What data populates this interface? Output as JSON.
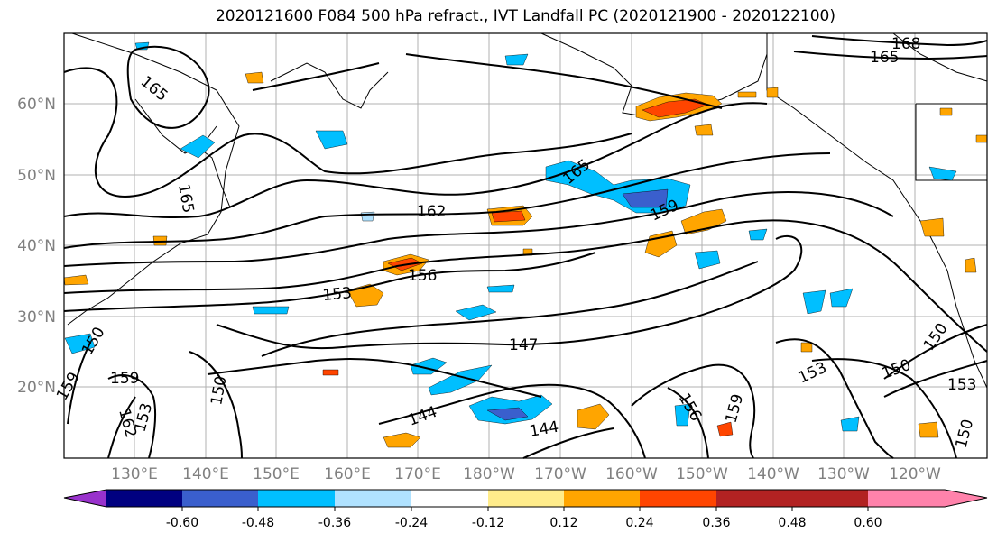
{
  "title": "2020121600 F084 500 hPa refract., IVT Landfall PC (2020121900 - 2020122100)",
  "lat_labels": [
    "60°N",
    "50°N",
    "40°N",
    "30°N",
    "20°N"
  ],
  "lon_labels": [
    "130°E",
    "140°E",
    "150°E",
    "160°E",
    "170°E",
    "180°W",
    "170°W",
    "160°W",
    "150°W",
    "140°W",
    "130°W",
    "120°W"
  ],
  "contour_labels": [
    "165",
    "168",
    "165",
    "165",
    "165",
    "162",
    "159",
    "156",
    "153",
    "147",
    "150",
    "159",
    "162",
    "153",
    "150",
    "144",
    "144",
    "156",
    "159",
    "153",
    "150",
    "150",
    "153",
    "150",
    "159"
  ],
  "colorbar": {
    "ticks": [
      "-0.60",
      "-0.48",
      "-0.36",
      "-0.24",
      "-0.12",
      "0.12",
      "0.24",
      "0.36",
      "0.48",
      "0.60"
    ],
    "colors": [
      "#9932cc",
      "#000080",
      "#3a5fcd",
      "#00bfff",
      "#b0e2ff",
      "#ffffff",
      "#ffec8b",
      "#ffa500",
      "#ff4500",
      "#b22222",
      "#ff82ab"
    ]
  }
}
